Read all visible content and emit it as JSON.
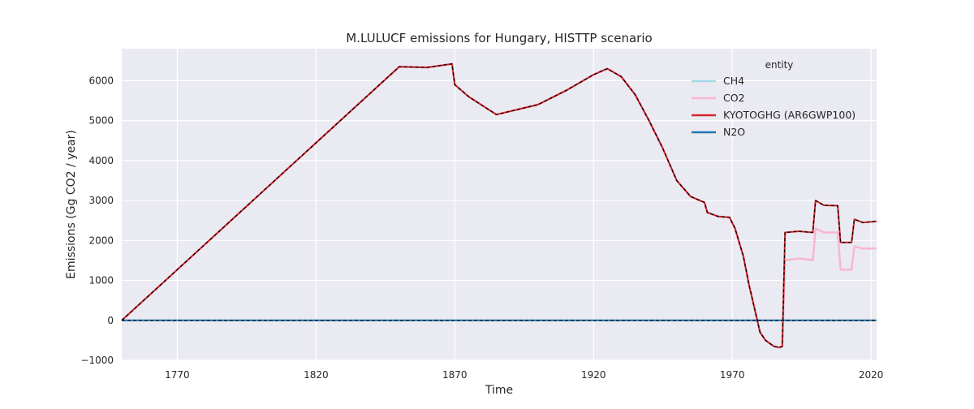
{
  "chart_data": {
    "type": "line",
    "title": "M.LULUCF emissions for Hungary, HISTTP scenario",
    "xlabel": "Time",
    "ylabel": "Emissions (Gg CO2 / year)",
    "xlim": [
      1750,
      2022
    ],
    "ylim": [
      -1000,
      6800
    ],
    "xticks": [
      1770,
      1820,
      1870,
      1920,
      1970,
      2020
    ],
    "yticks": [
      -1000,
      0,
      1000,
      2000,
      3000,
      4000,
      5000,
      6000
    ],
    "grid": true,
    "legend": {
      "title": "entity",
      "placement": "top-right"
    },
    "series": [
      {
        "name": "CH4",
        "color": "#9edae5",
        "width": 2,
        "dash": "",
        "points": [
          [
            1750,
            0
          ],
          [
            2022,
            0
          ]
        ]
      },
      {
        "name": "CO2",
        "color": "#f7b6d2",
        "width": 2.5,
        "dash": "",
        "points": [
          [
            1750,
            0
          ],
          [
            1850,
            6350
          ],
          [
            1860,
            6330
          ],
          [
            1869,
            6420
          ],
          [
            1870,
            5900
          ],
          [
            1875,
            5600
          ],
          [
            1885,
            5150
          ],
          [
            1900,
            5400
          ],
          [
            1910,
            5750
          ],
          [
            1920,
            6150
          ],
          [
            1925,
            6300
          ],
          [
            1930,
            6100
          ],
          [
            1935,
            5650
          ],
          [
            1940,
            5000
          ],
          [
            1945,
            4300
          ],
          [
            1950,
            3500
          ],
          [
            1955,
            3100
          ],
          [
            1960,
            2950
          ],
          [
            1961,
            2700
          ],
          [
            1965,
            2600
          ],
          [
            1969,
            2580
          ],
          [
            1971,
            2300
          ],
          [
            1974,
            1600
          ],
          [
            1976,
            900
          ],
          [
            1978,
            300
          ],
          [
            1980,
            -300
          ],
          [
            1982,
            -500
          ],
          [
            1985,
            -650
          ],
          [
            1987,
            -680
          ],
          [
            1988,
            -650
          ],
          [
            1989,
            1500
          ],
          [
            1994,
            1550
          ],
          [
            1999,
            1510
          ],
          [
            2000,
            2300
          ],
          [
            2003,
            2200
          ],
          [
            2008,
            2200
          ],
          [
            2009,
            1270
          ],
          [
            2013,
            1270
          ],
          [
            2014,
            1850
          ],
          [
            2017,
            1800
          ],
          [
            2022,
            1800
          ]
        ]
      },
      {
        "name": "KYOTOGHG (AR6GWP100)",
        "color": "#d62728",
        "width": 2,
        "dash": "",
        "points": [
          [
            1750,
            0
          ],
          [
            1850,
            6350
          ],
          [
            1860,
            6330
          ],
          [
            1869,
            6420
          ],
          [
            1870,
            5900
          ],
          [
            1875,
            5600
          ],
          [
            1885,
            5150
          ],
          [
            1900,
            5400
          ],
          [
            1910,
            5750
          ],
          [
            1920,
            6150
          ],
          [
            1925,
            6300
          ],
          [
            1930,
            6100
          ],
          [
            1935,
            5650
          ],
          [
            1940,
            5000
          ],
          [
            1945,
            4300
          ],
          [
            1950,
            3500
          ],
          [
            1955,
            3100
          ],
          [
            1960,
            2950
          ],
          [
            1961,
            2700
          ],
          [
            1965,
            2600
          ],
          [
            1969,
            2580
          ],
          [
            1971,
            2300
          ],
          [
            1974,
            1600
          ],
          [
            1976,
            900
          ],
          [
            1978,
            300
          ],
          [
            1980,
            -300
          ],
          [
            1982,
            -500
          ],
          [
            1985,
            -650
          ],
          [
            1987,
            -680
          ],
          [
            1988,
            -650
          ],
          [
            1989,
            2200
          ],
          [
            1994,
            2230
          ],
          [
            1999,
            2200
          ],
          [
            2000,
            3000
          ],
          [
            2003,
            2880
          ],
          [
            2008,
            2870
          ],
          [
            2009,
            1950
          ],
          [
            2013,
            1950
          ],
          [
            2014,
            2530
          ],
          [
            2017,
            2450
          ],
          [
            2022,
            2480
          ]
        ]
      },
      {
        "name": "N2O",
        "color": "#1f77b4",
        "width": 2,
        "dash": "",
        "points": [
          [
            1750,
            0
          ],
          [
            2022,
            0
          ]
        ]
      },
      {
        "name": "",
        "color": "#000000",
        "width": 1.2,
        "dash": "4,3",
        "legend": false,
        "points": [
          [
            1750,
            0
          ],
          [
            2022,
            0
          ]
        ]
      },
      {
        "name": "",
        "color": "#000000",
        "width": 1.2,
        "dash": "4,3",
        "legend": false,
        "points": [
          [
            1750,
            0
          ],
          [
            1850,
            6350
          ],
          [
            1860,
            6330
          ],
          [
            1869,
            6420
          ],
          [
            1870,
            5900
          ],
          [
            1875,
            5600
          ],
          [
            1885,
            5150
          ],
          [
            1900,
            5400
          ],
          [
            1910,
            5750
          ],
          [
            1920,
            6150
          ],
          [
            1925,
            6300
          ],
          [
            1930,
            6100
          ],
          [
            1935,
            5650
          ],
          [
            1940,
            5000
          ],
          [
            1945,
            4300
          ],
          [
            1950,
            3500
          ],
          [
            1955,
            3100
          ],
          [
            1960,
            2950
          ],
          [
            1961,
            2700
          ],
          [
            1965,
            2600
          ],
          [
            1969,
            2580
          ],
          [
            1971,
            2300
          ],
          [
            1974,
            1600
          ],
          [
            1976,
            900
          ],
          [
            1978,
            300
          ],
          [
            1980,
            -300
          ],
          [
            1982,
            -500
          ],
          [
            1985,
            -650
          ],
          [
            1987,
            -680
          ],
          [
            1988,
            -650
          ],
          [
            1989,
            2200
          ],
          [
            1994,
            2230
          ],
          [
            1999,
            2200
          ],
          [
            2000,
            3000
          ],
          [
            2003,
            2880
          ],
          [
            2008,
            2870
          ],
          [
            2009,
            1950
          ],
          [
            2013,
            1950
          ],
          [
            2014,
            2530
          ],
          [
            2017,
            2450
          ],
          [
            2022,
            2480
          ]
        ]
      }
    ]
  }
}
